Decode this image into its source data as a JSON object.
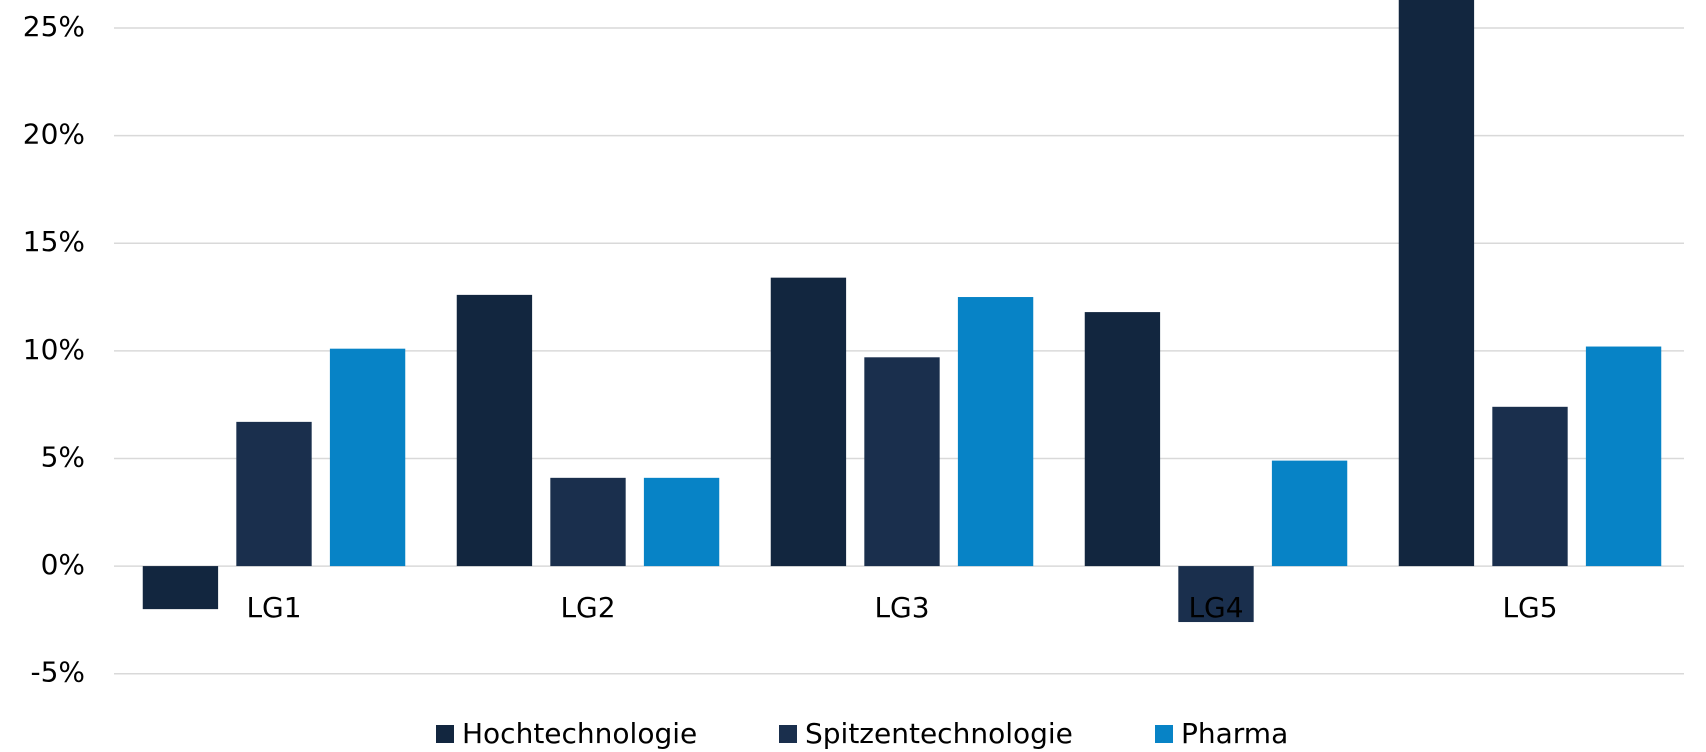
{
  "chart_data": {
    "type": "bar",
    "categories": [
      "LG1",
      "LG2",
      "LG3",
      "LG4",
      "LG5"
    ],
    "series": [
      {
        "name": "Hochtechnologie",
        "color": "#12263f",
        "values": [
          -2.0,
          12.6,
          13.4,
          11.8,
          27
        ]
      },
      {
        "name": "Spitzentechnologie",
        "color": "#1a2f4d",
        "values": [
          6.7,
          4.1,
          9.7,
          -2.6,
          7.4
        ]
      },
      {
        "name": "Pharma",
        "color": "#0783c6",
        "values": [
          10.1,
          4.1,
          12.5,
          4.9,
          10.2
        ]
      }
    ],
    "ylim": [
      -5,
      26.3
    ],
    "yticks": [
      {
        "value": -5,
        "label": "-5%"
      },
      {
        "value": 0,
        "label": "0%"
      },
      {
        "value": 5,
        "label": "5%"
      },
      {
        "value": 10,
        "label": "10%"
      },
      {
        "value": 15,
        "label": "15%"
      },
      {
        "value": 20,
        "label": "20%"
      },
      {
        "value": 25,
        "label": "25%"
      }
    ],
    "grid": true,
    "legend": "bottom"
  }
}
